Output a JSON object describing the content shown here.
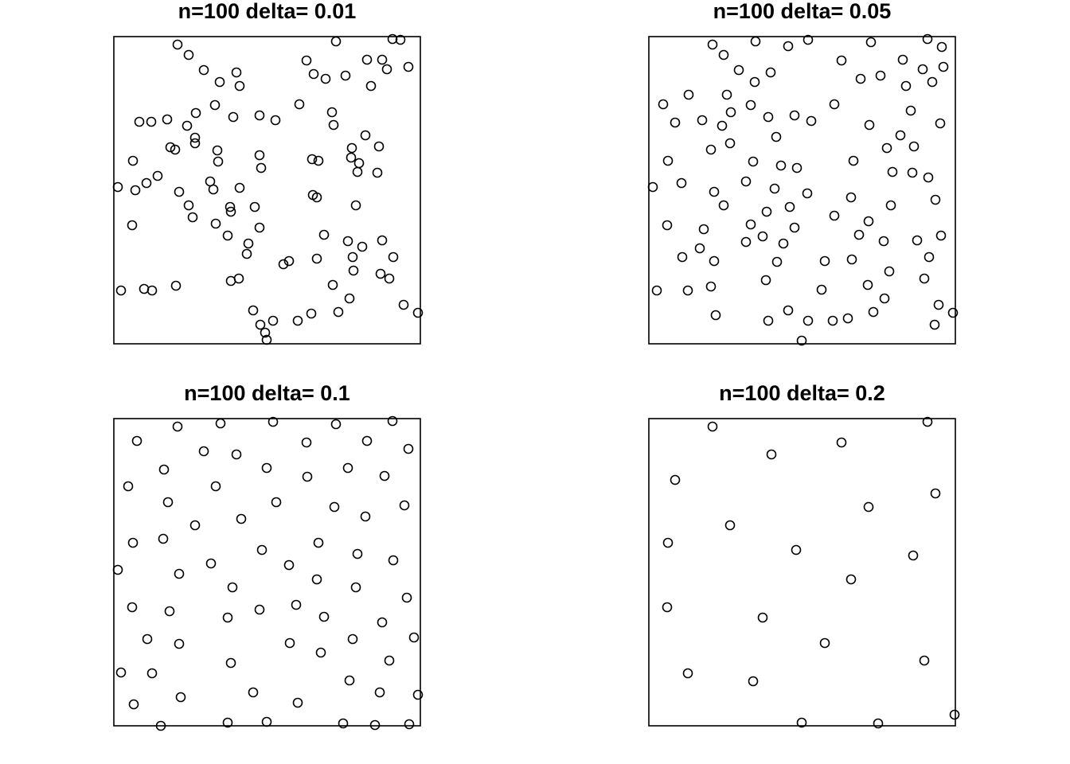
{
  "chart_data": [
    {
      "type": "scatter",
      "title": "n=100 delta= 0.01",
      "color": "#000000",
      "xlim": [
        0,
        385
      ],
      "ylim": [
        0,
        386
      ],
      "x": [
        80,
        94,
        113,
        133,
        154,
        158,
        127,
        103,
        150,
        183,
        203,
        233,
        242,
        251,
        266,
        279,
        291,
        318,
        337,
        343,
        323,
        350,
        360,
        370,
        274,
        276,
        316,
        333,
        299,
        298,
        308,
        306,
        331,
        249,
        257,
        32,
        47,
        67,
        92,
        102,
        102,
        71,
        77,
        130,
        131,
        183,
        185,
        24,
        55,
        41,
        27,
        5,
        82,
        121,
        125,
        158,
        94,
        99,
        146,
        147,
        177,
        128,
        183,
        143,
        169,
        167,
        250,
        255,
        304,
        23,
        264,
        294,
        312,
        337,
        351,
        300,
        301,
        255,
        213,
        220,
        335,
        346,
        147,
        157,
        275,
        78,
        38,
        48,
        9,
        296,
        364,
        382,
        282,
        248,
        231,
        175,
        184,
        200,
        190,
        192
      ],
      "values": [
        376,
        363,
        344,
        329,
        341,
        324,
        300,
        290,
        285,
        287,
        281,
        301,
        356,
        339,
        333,
        380,
        337,
        357,
        357,
        345,
        324,
        383,
        382,
        348,
        291,
        275,
        262,
        248,
        246,
        234,
        227,
        216,
        215,
        232,
        230,
        279,
        279,
        282,
        274,
        259,
        252,
        247,
        244,
        243,
        229,
        237,
        221,
        230,
        211,
        202,
        193,
        197,
        191,
        204,
        194,
        196,
        174,
        159,
        172,
        166,
        172,
        151,
        146,
        136,
        126,
        113,
        187,
        184,
        174,
        149,
        137,
        129,
        122,
        130,
        109,
        109,
        92,
        107,
        100,
        104,
        88,
        82,
        79,
        82,
        74,
        73,
        69,
        67,
        67,
        57,
        49,
        39,
        40,
        38,
        29,
        42,
        24,
        29,
        14,
        5
      ]
    },
    {
      "type": "scatter",
      "title": "n=100 delta= 0.05",
      "color": "#000000",
      "xlim": [
        0,
        385
      ],
      "ylim": [
        0,
        386
      ],
      "x": [
        80,
        94,
        134,
        175,
        200,
        242,
        279,
        319,
        350,
        368,
        370,
        344,
        356,
        323,
        291,
        266,
        113,
        133,
        153,
        98,
        50,
        18,
        33,
        67,
        103,
        92,
        128,
        150,
        183,
        204,
        233,
        277,
        329,
        366,
        316,
        299,
        333,
        160,
        102,
        78,
        24,
        131,
        166,
        186,
        257,
        306,
        331,
        351,
        41,
        5,
        82,
        122,
        158,
        199,
        254,
        360,
        94,
        148,
        177,
        304,
        23,
        69,
        128,
        183,
        233,
        276,
        264,
        143,
        122,
        169,
        295,
        337,
        367,
        64,
        42,
        82,
        161,
        221,
        255,
        352,
        302,
        147,
        346,
        78,
        49,
        10,
        217,
        275,
        296,
        364,
        382,
        282,
        84,
        150,
        175,
        200,
        231,
        250,
        359,
        192
      ],
      "values": [
        376,
        363,
        380,
        374,
        382,
        356,
        379,
        357,
        383,
        373,
        348,
        345,
        329,
        324,
        337,
        333,
        344,
        329,
        341,
        313,
        313,
        301,
        278,
        281,
        291,
        274,
        300,
        285,
        287,
        280,
        301,
        275,
        293,
        277,
        262,
        246,
        248,
        260,
        252,
        244,
        230,
        229,
        224,
        221,
        230,
        216,
        215,
        209,
        202,
        197,
        191,
        204,
        195,
        189,
        184,
        181,
        174,
        166,
        172,
        174,
        149,
        144,
        150,
        146,
        161,
        154,
        137,
        135,
        128,
        126,
        129,
        130,
        136,
        120,
        109,
        104,
        103,
        104,
        106,
        109,
        91,
        80,
        82,
        72,
        67,
        67,
        68,
        74,
        57,
        49,
        39,
        40,
        36,
        29,
        42,
        29,
        29,
        32,
        24,
        4
      ]
    },
    {
      "type": "scatter",
      "title": "n=100 delta= 0.1",
      "color": "#000000",
      "xlim": [
        0,
        385
      ],
      "ylim": [
        0,
        386
      ],
      "x": [
        80,
        134,
        200,
        279,
        350,
        29,
        113,
        154,
        242,
        318,
        370,
        63,
        18,
        128,
        192,
        243,
        294,
        340,
        68,
        204,
        277,
        365,
        102,
        160,
        316,
        24,
        62,
        186,
        257,
        306,
        351,
        5,
        82,
        122,
        220,
        255,
        149,
        304,
        368,
        23,
        70,
        143,
        183,
        229,
        264,
        337,
        42,
        82,
        221,
        260,
        300,
        377,
        147,
        346,
        9,
        48,
        296,
        25,
        84,
        175,
        231,
        334,
        382,
        59,
        143,
        192,
        288,
        328,
        371
      ],
      "values": [
        376,
        380,
        382,
        379,
        383,
        358,
        345,
        341,
        356,
        358,
        348,
        322,
        301,
        301,
        324,
        313,
        324,
        314,
        281,
        281,
        275,
        277,
        252,
        260,
        263,
        230,
        235,
        221,
        230,
        216,
        208,
        196,
        191,
        204,
        202,
        184,
        174,
        174,
        161,
        149,
        144,
        136,
        146,
        152,
        137,
        130,
        109,
        103,
        104,
        92,
        109,
        111,
        79,
        82,
        67,
        66,
        57,
        27,
        36,
        42,
        29,
        42,
        39,
        0,
        4,
        5,
        3,
        1,
        2
      ]
    },
    {
      "type": "scatter",
      "title": "n=100 delta= 0.2",
      "color": "#000000",
      "xlim": [
        0,
        385
      ],
      "ylim": [
        0,
        386
      ],
      "x": [
        80,
        350,
        242,
        154,
        33,
        360,
        276,
        102,
        24,
        185,
        332,
        254,
        23,
        143,
        221,
        346,
        49,
        131,
        384,
        192,
        288
      ],
      "values": [
        376,
        382,
        356,
        341,
        309,
        292,
        275,
        252,
        230,
        221,
        214,
        184,
        149,
        136,
        104,
        82,
        66,
        56,
        14,
        4,
        3
      ]
    }
  ]
}
